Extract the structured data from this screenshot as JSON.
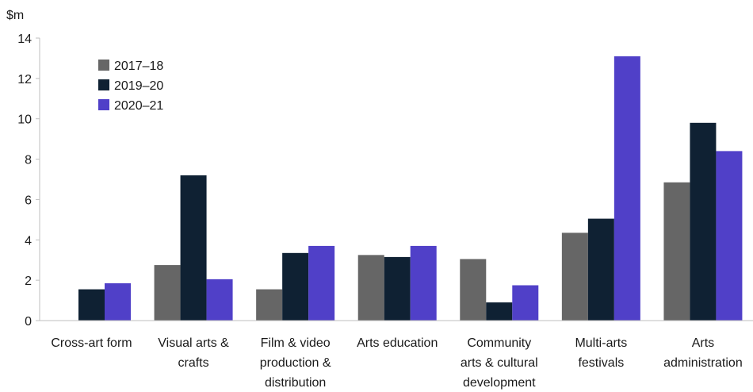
{
  "chart_data": {
    "type": "bar",
    "title": "",
    "xlabel": "",
    "ylabel": "$m",
    "ylim": [
      0,
      14
    ],
    "yticks": [
      0,
      2,
      4,
      6,
      8,
      10,
      12,
      14
    ],
    "grid": false,
    "legend_position": "top-left",
    "categories": [
      "Cross-art form",
      "Visual arts & crafts",
      "Film & video production & distribution",
      "Arts education",
      "Community arts & cultural development",
      "Multi-arts festivals",
      "Arts administration"
    ],
    "category_lines": [
      [
        "Cross-art form"
      ],
      [
        "Visual arts &",
        "crafts"
      ],
      [
        "Film & video",
        "production &",
        "distribution"
      ],
      [
        "Arts education"
      ],
      [
        "Community",
        "arts & cultural",
        "development"
      ],
      [
        "Multi-arts",
        "festivals"
      ],
      [
        "Arts",
        "administration"
      ]
    ],
    "series": [
      {
        "name": "2017–18",
        "color": "#666666",
        "values": [
          0,
          2.75,
          1.55,
          3.25,
          3.05,
          4.35,
          6.85
        ]
      },
      {
        "name": "2019–20",
        "color": "#0f2133",
        "values": [
          1.55,
          7.2,
          3.35,
          3.15,
          0.9,
          5.05,
          9.8
        ]
      },
      {
        "name": "2020–21",
        "color": "#5040c8",
        "values": [
          1.85,
          2.05,
          3.7,
          3.7,
          1.75,
          13.1,
          8.4
        ]
      }
    ]
  }
}
